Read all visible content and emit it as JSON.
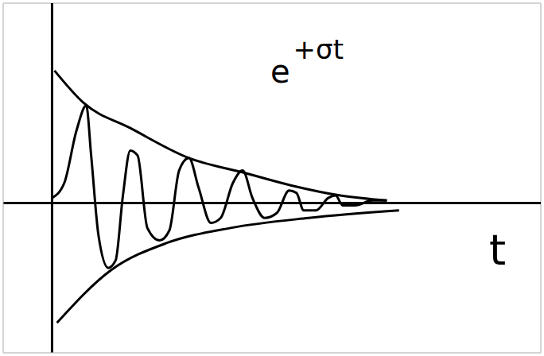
{
  "chart_data": {
    "type": "line",
    "annotation": {
      "text": "e",
      "superscript": "+σt"
    },
    "x_label": "t",
    "xlim": [
      -2,
      20
    ],
    "ylim": [
      -6,
      8
    ],
    "xticks": [
      -2,
      -1,
      0,
      1,
      2,
      3,
      4,
      5,
      6,
      7,
      8,
      9,
      10,
      11,
      12,
      13,
      14,
      15,
      16,
      17,
      18,
      19,
      20
    ],
    "yticks": [
      -6,
      -5,
      -4,
      -3,
      -2,
      -1,
      0,
      1,
      2,
      3,
      4,
      5,
      6,
      7,
      8
    ],
    "grid": true,
    "tick_labels": false,
    "series": [
      {
        "color": "#000000",
        "x": [
          0,
          0.5,
          1.0,
          1.4,
          1.6,
          1.9,
          2.3,
          2.6,
          2.9,
          3.2,
          3.5,
          3.9,
          4.4,
          4.8,
          5.2,
          5.6,
          6.0,
          6.5,
          6.9,
          7.4,
          7.8,
          8.2,
          8.7,
          9.2,
          9.7,
          10.0,
          10.3,
          10.8,
          11.3,
          11.6,
          11.9,
          12.4,
          13.1,
          13.7
        ],
        "values": [
          0.2,
          0.8,
          2.9,
          3.9,
          1.9,
          -1.3,
          -2.6,
          -2.3,
          0.3,
          2.1,
          1.9,
          -1.0,
          -1.5,
          -1.1,
          1.3,
          1.8,
          0.6,
          -0.8,
          -0.6,
          0.8,
          1.3,
          0.2,
          -0.6,
          -0.4,
          0.5,
          0.4,
          -0.3,
          -0.3,
          0.2,
          0.3,
          -0.1,
          -0.1,
          0.1,
          0.1
        ]
      },
      {
        "color": "#000000",
        "x": [
          0.1,
          1.3,
          3.2,
          5.6,
          7.9,
          9.8,
          11.8,
          13.7
        ],
        "values": [
          5.3,
          4.0,
          3.0,
          1.8,
          1.2,
          0.7,
          0.3,
          0.1
        ]
      },
      {
        "color": "#000000",
        "x": [
          0.2,
          2.4,
          4.7,
          7.3,
          10.5,
          14.2
        ],
        "values": [
          -4.8,
          -2.7,
          -1.6,
          -1.0,
          -0.6,
          -0.3
        ]
      }
    ]
  }
}
